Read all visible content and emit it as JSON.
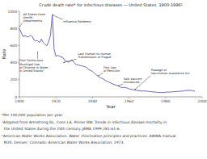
{
  "chart_data": {
    "type": "line",
    "title": "Crude death rate* for infectious diseases — United States, 1900-1996¹",
    "x_label": "Year",
    "y_label": "Rate",
    "xlim": [
      1900,
      2000
    ],
    "ylim": [
      0,
      1000
    ],
    "xticks": [
      1900,
      1920,
      1940,
      1960,
      1980,
      2000
    ],
    "yticks": [
      0,
      200,
      400,
      600,
      800,
      1000
    ],
    "color": "#6666bb",
    "x": [
      1900,
      1901,
      1902,
      1903,
      1904,
      1905,
      1906,
      1907,
      1908,
      1909,
      1910,
      1911,
      1912,
      1913,
      1914,
      1915,
      1916,
      1917,
      1918,
      1919,
      1920,
      1921,
      1922,
      1923,
      1924,
      1925,
      1926,
      1927,
      1928,
      1929,
      1930,
      1931,
      1932,
      1933,
      1934,
      1935,
      1936,
      1937,
      1938,
      1939,
      1940,
      1941,
      1942,
      1943,
      1944,
      1945,
      1946,
      1947,
      1948,
      1949,
      1950,
      1951,
      1952,
      1953,
      1954,
      1955,
      1956,
      1957,
      1958,
      1959,
      1960,
      1961,
      1962,
      1963,
      1964,
      1965,
      1966,
      1967,
      1968,
      1969,
      1970,
      1971,
      1972,
      1973,
      1974,
      1975,
      1976,
      1977,
      1978,
      1979,
      1980,
      1981,
      1982,
      1983,
      1984,
      1985,
      1986,
      1987,
      1988,
      1989,
      1990,
      1991,
      1992,
      1993,
      1994,
      1995,
      1996
    ],
    "values": [
      797,
      750,
      705,
      715,
      705,
      700,
      720,
      705,
      665,
      655,
      655,
      635,
      675,
      635,
      615,
      598,
      645,
      720,
      960,
      550,
      475,
      485,
      475,
      468,
      455,
      418,
      415,
      405,
      428,
      425,
      398,
      378,
      375,
      368,
      362,
      358,
      352,
      338,
      318,
      308,
      298,
      278,
      258,
      242,
      228,
      218,
      208,
      192,
      182,
      172,
      162,
      152,
      142,
      137,
      128,
      118,
      108,
      113,
      108,
      103,
      93,
      88,
      83,
      80,
      76,
      73,
      70,
      68,
      70,
      68,
      66,
      63,
      60,
      58,
      56,
      54,
      52,
      51,
      50,
      51,
      54,
      57,
      55,
      57,
      59,
      61,
      63,
      64,
      66,
      67,
      71,
      73,
      75,
      77,
      74,
      71,
      68
    ],
    "annotations": [
      {
        "text": "40 States Have\nHealth\nDepartments",
        "x": 1900,
        "y": 820
      },
      {
        "text": "Influenza Pandemic",
        "x": 1918,
        "y": 960
      },
      {
        "text": "First Continuous\nMunicipal Use\nof Chlorine in Water\nin United Statesᵇ",
        "x": 1910,
        "y": 530
      },
      {
        "text": "Last Human-to-Human\nTransmission of Plague",
        "x": 1924,
        "y": 400
      },
      {
        "text": "First Use\nof Penicillin",
        "x": 1943,
        "y": 242
      },
      {
        "text": "Salk Vaccine\nIntroduced",
        "x": 1954,
        "y": 128
      },
      {
        "text": "Passage of\nVaccination Assistance Act",
        "x": 1963,
        "y": 82
      }
    ],
    "footnotes": [
      "*Per 100,000 population per year.",
      "¹Adapted from Armstrong GL, Conn LA, Pinner RW. Trends in infectious disease mortality in",
      "  the United States during the 20th century. JAMA 1999;281:61-6.",
      "ᵇAmerican Water Works Association. Water chlorination principles and practices: AWWA manual",
      "  M20. Denver, Colorado: American Water Works Association, 1973."
    ]
  }
}
